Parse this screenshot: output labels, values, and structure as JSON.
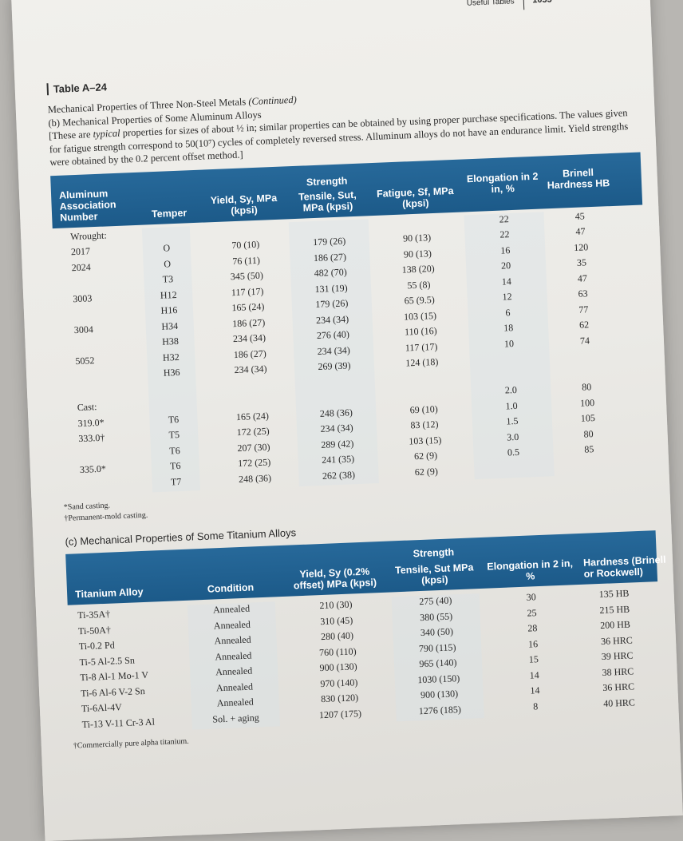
{
  "running_head": {
    "section": "Useful Tables",
    "page_number": "1055"
  },
  "table": {
    "label": "Table A–24",
    "title": "Mechanical Properties of Three Non-Steel Metals",
    "title_note": "(Continued)",
    "part_b_title": "(b) Mechanical Properties of Some Aluminum Alloys",
    "note_pre": "[These are",
    "note_em": "typical",
    "note_post": "properties for sizes of about ½ in; similar properties can be obtained by using proper purchase specifications. The values given for fatigue strength correspond to 50(10⁷) cycles of completely reversed stress. Alluminum alloys do not have an endurance limit. Yield strengths were obtained by the 0.2 percent offset method.]"
  },
  "aluminum": {
    "group_header": "Strength",
    "headers": {
      "alloy": "Aluminum Association Number",
      "temper": "Temper",
      "yield": "Yield, Sy, MPa (kpsi)",
      "tensile": "Tensile, Sut, MPa (kpsi)",
      "fatigue": "Fatigue, Sf, MPa (kpsi)",
      "elongation": "Elongation in 2 in, %",
      "hardness": "Brinell Hardness HB"
    },
    "rows": [
      {
        "alloy": "Wrought:",
        "temper": "",
        "yield": "",
        "tensile": "",
        "fatigue": "",
        "elong": "22",
        "hard": "45"
      },
      {
        "alloy": "2017",
        "temper": "O",
        "yield": "70 (10)",
        "tensile": "179 (26)",
        "fatigue": "90 (13)",
        "elong": "22",
        "hard": "47"
      },
      {
        "alloy": "2024",
        "temper": "O",
        "yield": "76 (11)",
        "tensile": "186 (27)",
        "fatigue": "90 (13)",
        "elong": "16",
        "hard": "120"
      },
      {
        "alloy": "",
        "temper": "T3",
        "yield": "345 (50)",
        "tensile": "482 (70)",
        "fatigue": "138 (20)",
        "elong": "20",
        "hard": "35"
      },
      {
        "alloy": "3003",
        "temper": "H12",
        "yield": "117 (17)",
        "tensile": "131 (19)",
        "fatigue": "55 (8)",
        "elong": "14",
        "hard": "47"
      },
      {
        "alloy": "",
        "temper": "H16",
        "yield": "165 (24)",
        "tensile": "179 (26)",
        "fatigue": "65 (9.5)",
        "elong": "12",
        "hard": "63"
      },
      {
        "alloy": "3004",
        "temper": "H34",
        "yield": "186 (27)",
        "tensile": "234 (34)",
        "fatigue": "103 (15)",
        "elong": "6",
        "hard": "77"
      },
      {
        "alloy": "",
        "temper": "H38",
        "yield": "234 (34)",
        "tensile": "276 (40)",
        "fatigue": "110 (16)",
        "elong": "18",
        "hard": "62"
      },
      {
        "alloy": "5052",
        "temper": "H32",
        "yield": "186 (27)",
        "tensile": "234 (34)",
        "fatigue": "117 (17)",
        "elong": "10",
        "hard": "74"
      },
      {
        "alloy": "",
        "temper": "H36",
        "yield": "234 (34)",
        "tensile": "269 (39)",
        "fatigue": "124 (18)",
        "elong": "",
        "hard": ""
      },
      {
        "alloy": "",
        "temper": "",
        "yield": "",
        "tensile": "",
        "fatigue": "",
        "elong": "",
        "hard": ""
      },
      {
        "alloy": "Cast:",
        "temper": "",
        "yield": "",
        "tensile": "",
        "fatigue": "",
        "elong": "2.0",
        "hard": "80"
      },
      {
        "alloy": "319.0*",
        "temper": "T6",
        "yield": "165 (24)",
        "tensile": "248 (36)",
        "fatigue": "69 (10)",
        "elong": "1.0",
        "hard": "100"
      },
      {
        "alloy": "333.0†",
        "temper": "T5",
        "yield": "172 (25)",
        "tensile": "234 (34)",
        "fatigue": "83 (12)",
        "elong": "1.5",
        "hard": "105"
      },
      {
        "alloy": "",
        "temper": "T6",
        "yield": "207 (30)",
        "tensile": "289 (42)",
        "fatigue": "103 (15)",
        "elong": "3.0",
        "hard": "80"
      },
      {
        "alloy": "335.0*",
        "temper": "T6",
        "yield": "172 (25)",
        "tensile": "241 (35)",
        "fatigue": "62 (9)",
        "elong": "0.5",
        "hard": "85"
      },
      {
        "alloy": "",
        "temper": "T7",
        "yield": "248 (36)",
        "tensile": "262 (38)",
        "fatigue": "62 (9)",
        "elong": "",
        "hard": ""
      }
    ],
    "footnotes": [
      "*Sand casting.",
      "†Permanent-mold casting."
    ]
  },
  "titanium": {
    "section_title": "(c) Mechanical Properties of Some Titanium Alloys",
    "group_header": "Strength",
    "headers": {
      "alloy": "Titanium Alloy",
      "condition": "Condition",
      "yield": "Yield, Sy (0.2% offset) MPa (kpsi)",
      "tensile": "Tensile, Sut MPa (kpsi)",
      "elongation": "Elongation in 2 in, %",
      "hardness": "Hardness (Brinell or Rockwell)"
    },
    "rows": [
      {
        "alloy": "Ti-35A†",
        "condition": "Annealed",
        "yield": "210 (30)",
        "tensile": "275 (40)",
        "elong": "30",
        "hard": "135 HB"
      },
      {
        "alloy": "Ti-50A†",
        "condition": "Annealed",
        "yield": "310 (45)",
        "tensile": "380 (55)",
        "elong": "25",
        "hard": "215 HB"
      },
      {
        "alloy": "Ti-0.2 Pd",
        "condition": "Annealed",
        "yield": "280 (40)",
        "tensile": "340 (50)",
        "elong": "28",
        "hard": "200 HB"
      },
      {
        "alloy": "Ti-5 Al-2.5 Sn",
        "condition": "Annealed",
        "yield": "760 (110)",
        "tensile": "790 (115)",
        "elong": "16",
        "hard": "36 HRC"
      },
      {
        "alloy": "Ti-8 Al-1 Mo-1 V",
        "condition": "Annealed",
        "yield": "900 (130)",
        "tensile": "965 (140)",
        "elong": "15",
        "hard": "39 HRC"
      },
      {
        "alloy": "Ti-6 Al-6 V-2 Sn",
        "condition": "Annealed",
        "yield": "970 (140)",
        "tensile": "1030 (150)",
        "elong": "14",
        "hard": "38 HRC"
      },
      {
        "alloy": "Ti-6Al-4V",
        "condition": "Annealed",
        "yield": "830 (120)",
        "tensile": "900 (130)",
        "elong": "14",
        "hard": "36 HRC"
      },
      {
        "alloy": "Ti-13 V-11 Cr-3 Al",
        "condition": "Sol. + aging",
        "yield": "1207 (175)",
        "tensile": "1276 (185)",
        "elong": "8",
        "hard": "40 HRC"
      }
    ],
    "footnote": "†Commercially pure alpha titanium."
  }
}
